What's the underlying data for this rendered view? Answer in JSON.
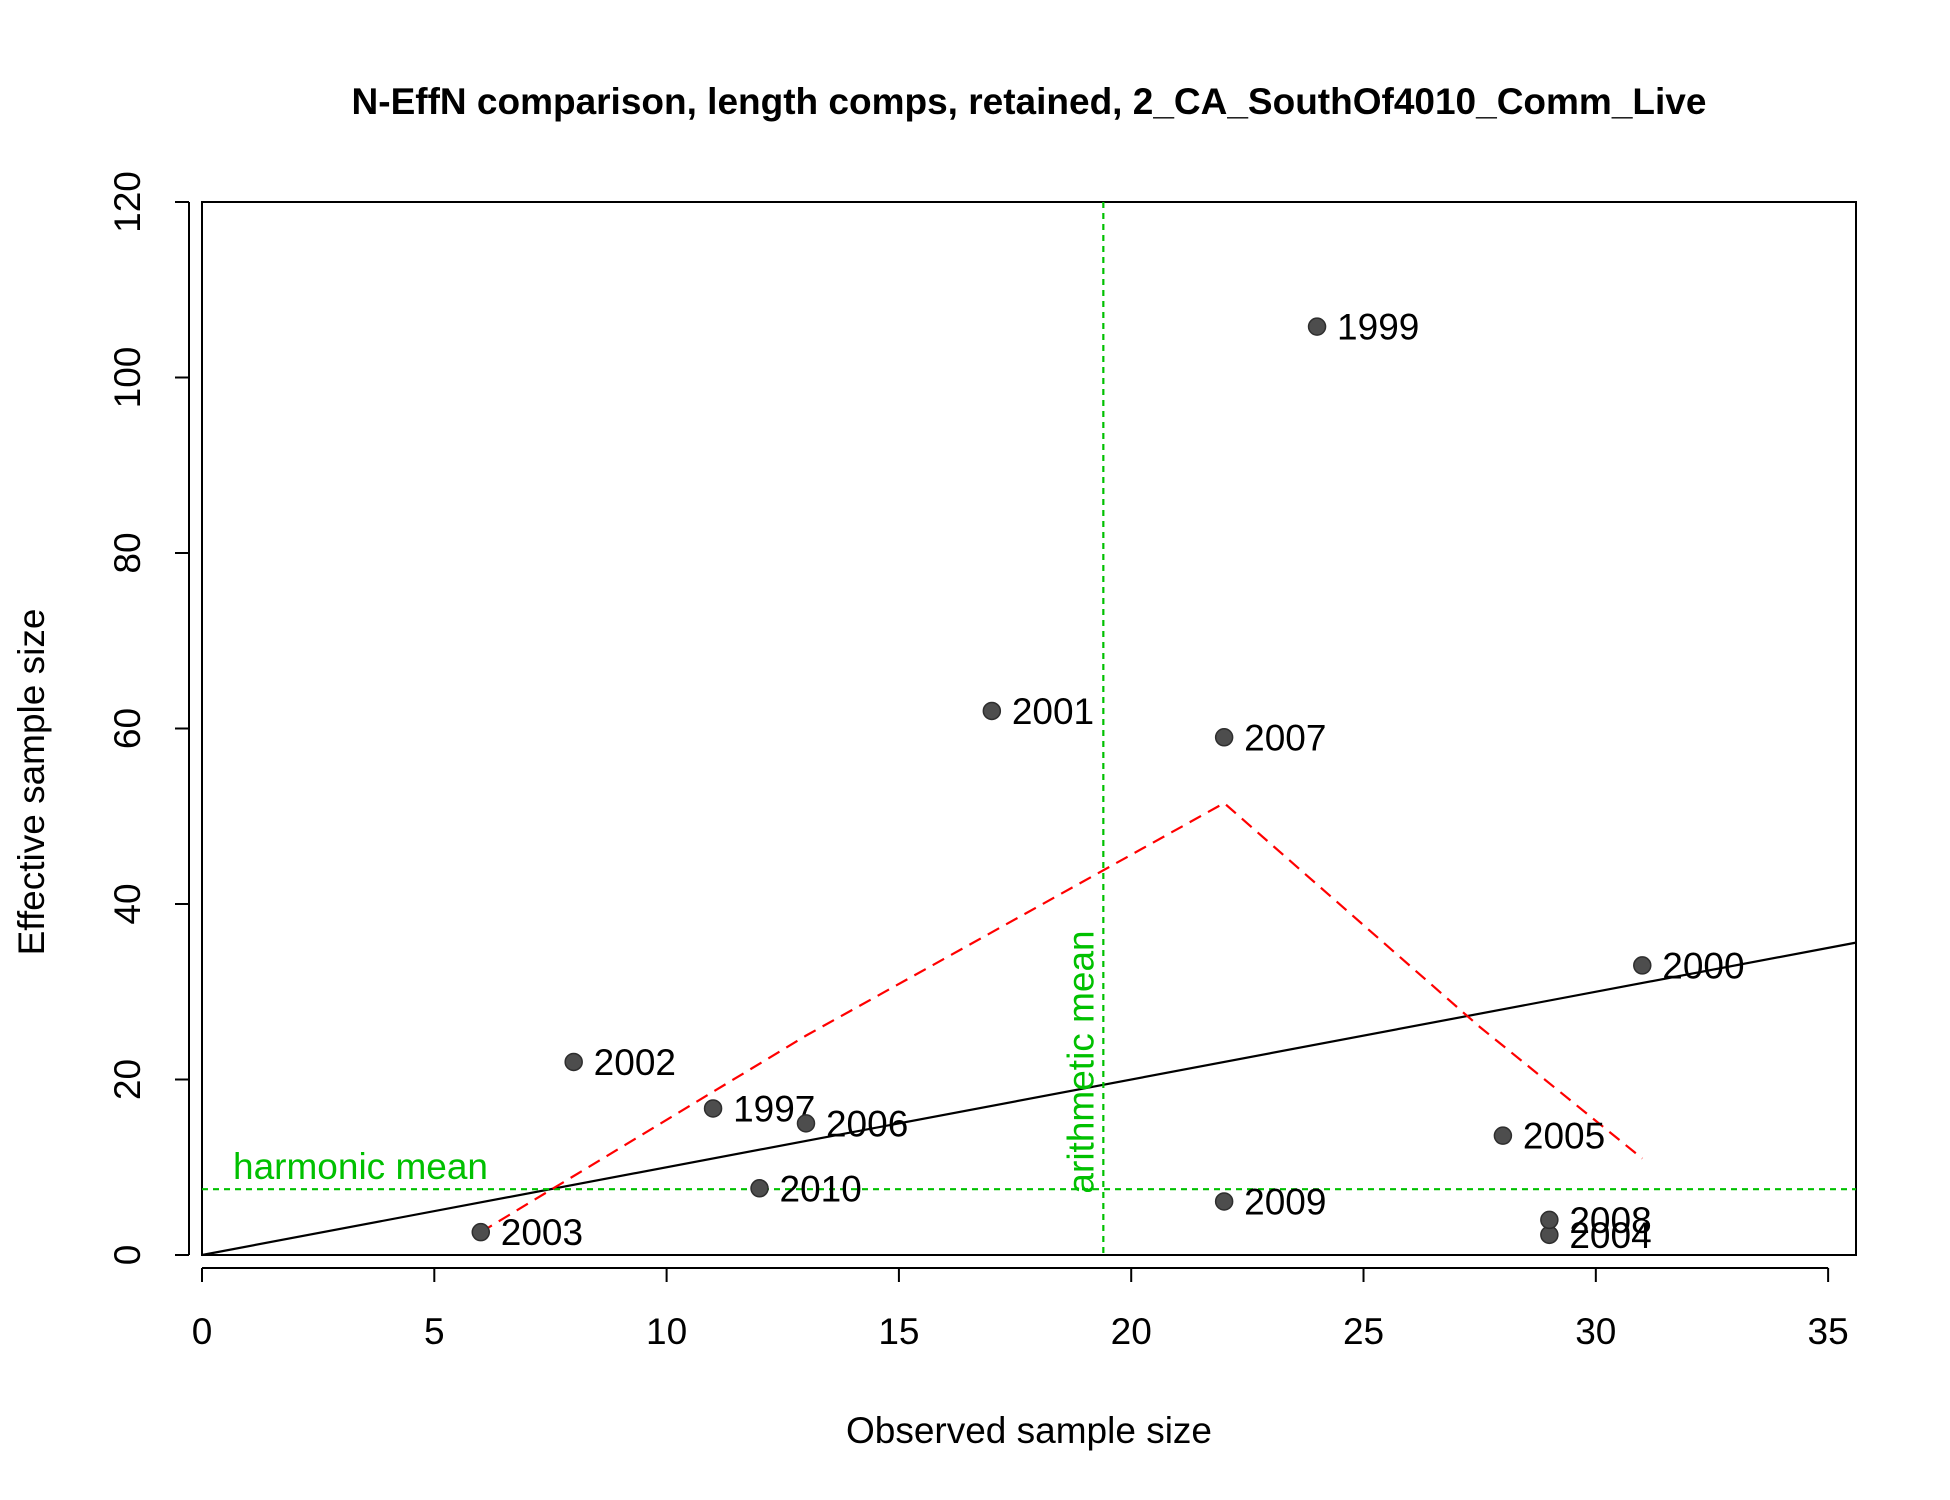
{
  "chart_data": {
    "type": "scatter",
    "title": "N-EffN comparison, length comps, retained, 2_CA_SouthOf4010_Comm_Live",
    "xlabel": "Observed sample size",
    "ylabel": "Effective sample size",
    "xlim": [
      0,
      35.6
    ],
    "ylim": [
      0,
      120
    ],
    "xticks": [
      0,
      5,
      10,
      15,
      20,
      25,
      30,
      35
    ],
    "yticks": [
      0,
      20,
      40,
      60,
      80,
      100,
      120
    ],
    "grid": false,
    "legend": "none",
    "points": [
      {
        "label": "1997",
        "x": 11,
        "y": 16.7
      },
      {
        "label": "1999",
        "x": 24,
        "y": 105.8
      },
      {
        "label": "2000",
        "x": 31,
        "y": 33
      },
      {
        "label": "2001",
        "x": 17,
        "y": 62
      },
      {
        "label": "2002",
        "x": 8,
        "y": 22
      },
      {
        "label": "2003",
        "x": 6,
        "y": 2.6
      },
      {
        "label": "2004",
        "x": 29,
        "y": 2.3
      },
      {
        "label": "2005",
        "x": 28,
        "y": 13.6
      },
      {
        "label": "2006",
        "x": 13,
        "y": 15
      },
      {
        "label": "2007",
        "x": 22,
        "y": 59
      },
      {
        "label": "2008",
        "x": 29,
        "y": 4
      },
      {
        "label": "2009",
        "x": 22,
        "y": 6.1
      },
      {
        "label": "2010",
        "x": 12,
        "y": 7.6
      }
    ],
    "reference_lines": {
      "one_to_one": {
        "x": [
          0,
          35.6
        ],
        "y": [
          0,
          35.6
        ],
        "color": "#000000"
      },
      "smoother": {
        "x": [
          6,
          13,
          22,
          27.5,
          31
        ],
        "y": [
          2.6,
          25,
          51.5,
          26,
          11
        ],
        "color": "#ff0000"
      },
      "harmonic_mean": {
        "label": "harmonic mean",
        "y": 7.5,
        "color": "#00c000"
      },
      "arithmetic_mean": {
        "label": "arithmetic mean",
        "x": 19.4,
        "color": "#00c000"
      }
    },
    "point_color": "#4d4d4d"
  }
}
